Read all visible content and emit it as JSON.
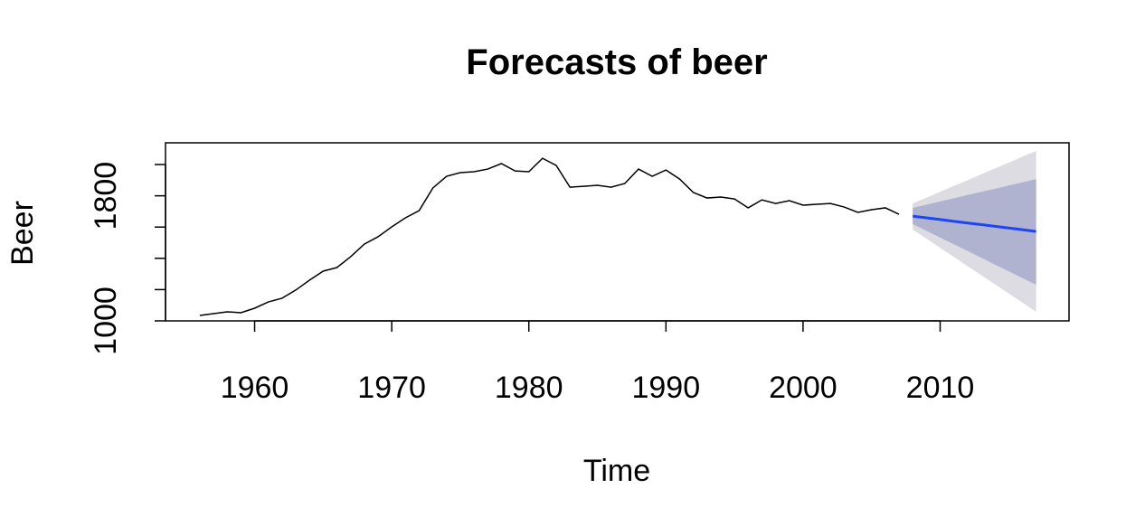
{
  "chart_data": {
    "type": "forecast",
    "title": "Forecasts of beer",
    "xlabel": "Time",
    "ylabel": "Beer",
    "xlim": [
      1953.5,
      2019.4
    ],
    "ylim": [
      1000,
      2139
    ],
    "xticks": [
      1960,
      1970,
      1980,
      1990,
      2000,
      2010
    ],
    "yticks": [
      1000,
      {
        "value": 1200,
        "label": null
      },
      {
        "value": 1400,
        "label": null
      },
      {
        "value": 1600,
        "label": null
      },
      1800,
      {
        "value": 2000,
        "label": null
      }
    ],
    "history": {
      "color": "#000000",
      "x": [
        1956,
        1957,
        1958,
        1959,
        1960,
        1961,
        1962,
        1963,
        1964,
        1965,
        1966,
        1967,
        1968,
        1969,
        1970,
        1971,
        1972,
        1973,
        1974,
        1975,
        1976,
        1977,
        1978,
        1979,
        1980,
        1981,
        1982,
        1983,
        1984,
        1985,
        1986,
        1987,
        1988,
        1989,
        1990,
        1991,
        1992,
        1993,
        1994,
        1995,
        1996,
        1997,
        1998,
        1999,
        2000,
        2001,
        2002,
        2003,
        2004,
        2005,
        2006,
        2007
      ],
      "values": [
        1035,
        1046,
        1058,
        1052,
        1081,
        1121,
        1145,
        1197,
        1260,
        1318,
        1341,
        1410,
        1491,
        1538,
        1601,
        1659,
        1705,
        1850,
        1925,
        1948,
        1954,
        1971,
        2006,
        1959,
        1954,
        2040,
        1994,
        1855,
        1861,
        1867,
        1855,
        1879,
        1971,
        1925,
        1965,
        1907,
        1821,
        1786,
        1792,
        1780,
        1723,
        1774,
        1751,
        1769,
        1740,
        1746,
        1751,
        1728,
        1694,
        1711,
        1723,
        1682
      ]
    },
    "forecast": {
      "x": [
        2008,
        2009,
        2010,
        2011,
        2012,
        2013,
        2014,
        2015,
        2016,
        2017
      ],
      "mean": {
        "color": "#1e45f5",
        "values": [
          1670,
          1659,
          1648,
          1637,
          1626,
          1616,
          1605,
          1594,
          1583,
          1572
        ]
      },
      "band80": {
        "color": "#b0b3d0",
        "lower": [
          1619,
          1576,
          1533,
          1490,
          1447,
          1403,
          1360,
          1317,
          1274,
          1231
        ],
        "upper": [
          1723,
          1743,
          1764,
          1784,
          1805,
          1825,
          1845,
          1866,
          1886,
          1907
        ]
      },
      "band95": {
        "color": "#dcdce2",
        "lower": [
          1584,
          1526,
          1467,
          1409,
          1350,
          1292,
          1234,
          1175,
          1117,
          1058
        ],
        "upper": [
          1751,
          1788,
          1826,
          1863,
          1900,
          1938,
          1975,
          2012,
          2050,
          2087
        ]
      }
    }
  }
}
